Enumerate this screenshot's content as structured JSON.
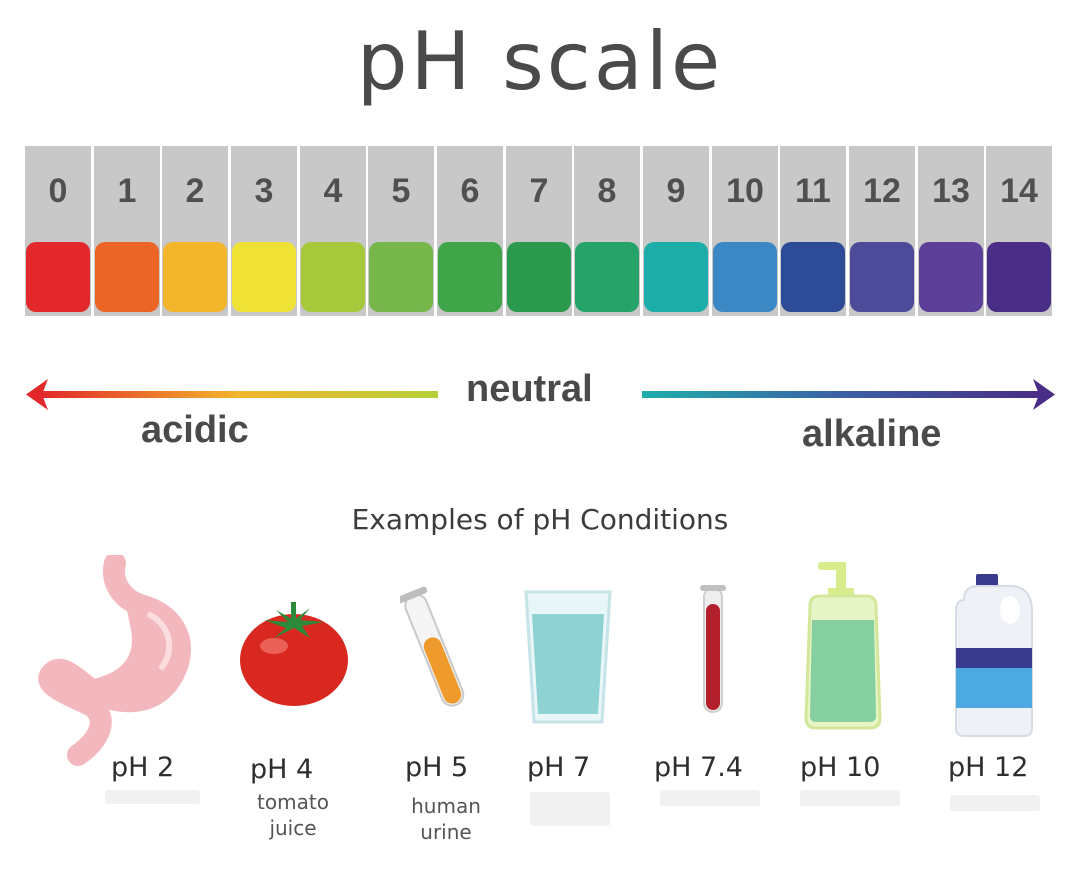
{
  "title": "pH scale",
  "scale": {
    "numbers": [
      "0",
      "1",
      "2",
      "3",
      "4",
      "5",
      "6",
      "7",
      "8",
      "9",
      "10",
      "11",
      "12",
      "13",
      "14"
    ],
    "colors": [
      "#e2282a",
      "#eb6626",
      "#f3b52c",
      "#f0e234",
      "#a6c93c",
      "#76b64a",
      "#3fa548",
      "#2b9a4f",
      "#26a369",
      "#1eaeaa",
      "#3b88c4",
      "#2e4b97",
      "#4b4b9a",
      "#5c3f98",
      "#4a2d86"
    ]
  },
  "labels": {
    "acidic": "acidic",
    "neutral": "neutral",
    "alkaline": "alkaline"
  },
  "examples_title": "Examples of pH Conditions",
  "examples": [
    {
      "icon": "stomach-icon",
      "ph": "pH 2",
      "desc": ""
    },
    {
      "icon": "tomato-icon",
      "ph": "pH 4",
      "desc": "tomato juice"
    },
    {
      "icon": "test-tube-icon",
      "ph": "pH 5",
      "desc": "human urine"
    },
    {
      "icon": "water-glass-icon",
      "ph": "pH 7",
      "desc": ""
    },
    {
      "icon": "blood-tube-icon",
      "ph": "pH 7.4",
      "desc": ""
    },
    {
      "icon": "soap-dispenser-icon",
      "ph": "pH 10",
      "desc": ""
    },
    {
      "icon": "bleach-bottle-icon",
      "ph": "pH 12",
      "desc": ""
    }
  ]
}
